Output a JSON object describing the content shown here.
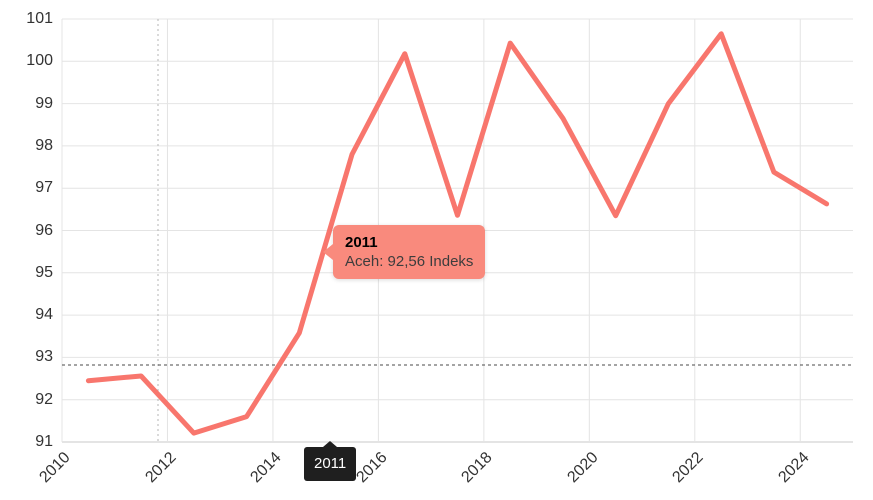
{
  "chart_data": {
    "type": "line",
    "title": "",
    "xlabel": "",
    "ylabel": "",
    "unit": "Indeks",
    "categories": [
      "2010",
      "2011",
      "2012",
      "2013",
      "2014",
      "2015",
      "2016",
      "2017",
      "2018",
      "2019",
      "2020",
      "2021",
      "2022",
      "2023",
      "2024"
    ],
    "series": [
      {
        "name": "Aceh",
        "values": [
          92.45,
          92.56,
          91.21,
          91.6,
          93.58,
          97.8,
          100.18,
          96.36,
          100.43,
          98.65,
          96.35,
          99.0,
          100.65,
          97.38,
          96.63
        ]
      }
    ],
    "ylim": [
      91,
      101
    ],
    "y_ticks": [
      91,
      92,
      93,
      94,
      95,
      96,
      97,
      98,
      99,
      100,
      101
    ],
    "x_tick_labels": [
      "2010",
      "2012",
      "2014",
      "2016",
      "2018",
      "2020",
      "2022",
      "2024"
    ],
    "x_tick_label_rotation_deg": 45,
    "grid": "on",
    "legend_position": "none"
  },
  "tooltip": {
    "title": "2011",
    "body": "Aceh: 92,56 Indeks"
  },
  "x_axis_pointer_label": {
    "text": "2011"
  },
  "colors": {
    "line": "#f8766d",
    "tooltip_background": "#f98a7d",
    "tooltip_title_text": "#000000",
    "tooltip_body_text": "#3d3d3d",
    "pointer_label_background": "#1f1f1f",
    "pointer_label_text": "#ffffff",
    "grid_line": "#e4e4e4",
    "axis_line": "#c9c9c9",
    "axis_text": "#333333",
    "crosshair_vertical": "#b5b5b5",
    "crosshair_horizontal": "#4a4a4a",
    "background": "#ffffff"
  }
}
